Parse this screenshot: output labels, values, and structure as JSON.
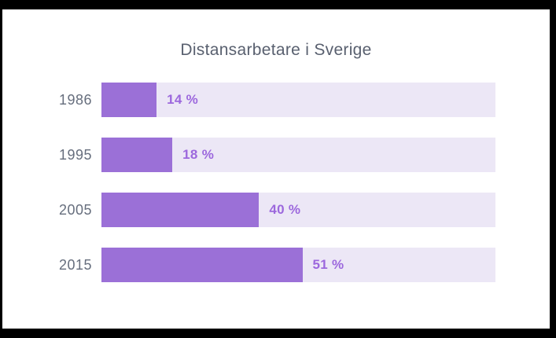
{
  "frame": {
    "background": "#000000",
    "card_background": "#ffffff"
  },
  "chart_data": {
    "type": "bar",
    "orientation": "horizontal",
    "title": "Distansarbetare i Sverige",
    "categories": [
      "1986",
      "1995",
      "2005",
      "2015"
    ],
    "values": [
      14,
      18,
      40,
      51
    ],
    "value_labels": [
      "14 %",
      "18 %",
      "40 %",
      "51 %"
    ],
    "xlabel": "",
    "ylabel": "",
    "xlim": [
      0,
      100
    ],
    "grid": false,
    "legend": false,
    "colors": {
      "bar_fill": "#9b70d7",
      "bar_track": "#ece7f6",
      "value_label": "#9c68dd",
      "category_label": "#666e7d",
      "title": "#59606f",
      "card_background": "#ffffff",
      "frame_background": "#000000"
    }
  }
}
